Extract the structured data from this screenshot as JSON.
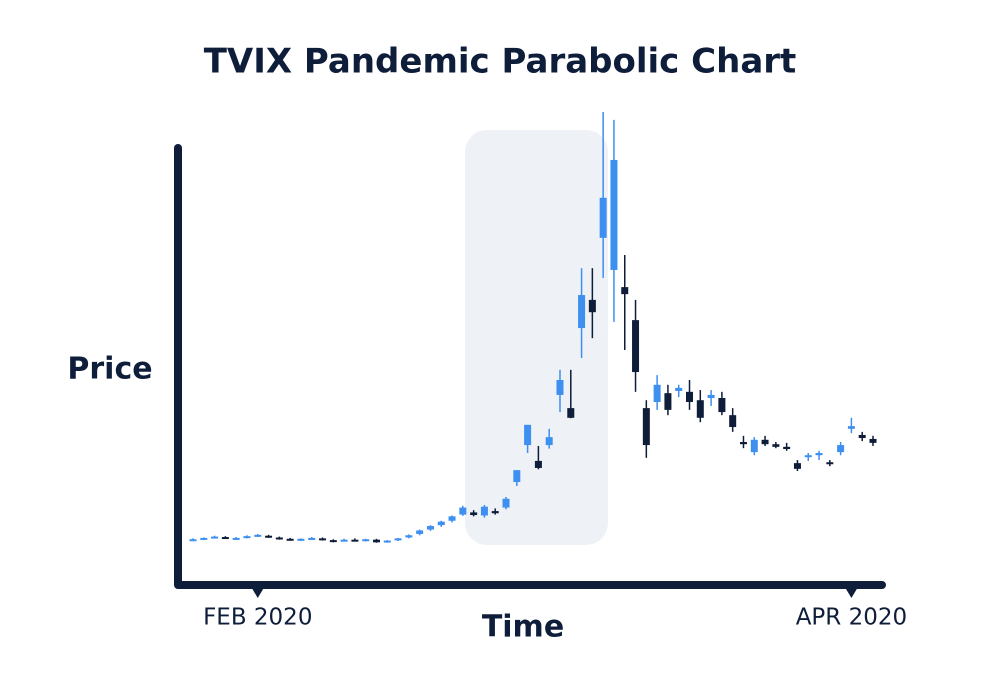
{
  "chart_data": {
    "type": "candlestick",
    "title": "TVIX Pandemic Parabolic Chart",
    "x_label": "Time",
    "y_label": "Price",
    "categories": [
      null,
      null,
      null,
      null,
      null,
      null,
      null,
      null,
      null,
      null,
      null,
      null,
      null,
      null,
      null,
      null,
      null,
      null,
      null,
      null,
      null,
      null,
      null,
      null,
      null,
      null,
      null,
      null,
      null,
      null,
      null,
      null,
      null,
      null,
      null,
      null,
      null,
      null,
      null,
      null,
      null,
      null,
      null,
      null,
      null,
      null,
      null,
      null,
      null,
      null,
      null,
      null,
      null,
      null,
      null,
      null,
      null,
      null,
      null,
      null,
      null,
      null,
      null,
      null
    ],
    "open": [
      10.3,
      10.4,
      10.8,
      10.9,
      10.6,
      10.8,
      11.2,
      11.2,
      10.8,
      10.5,
      10.3,
      10.5,
      10.6,
      10.2,
      10.0,
      10.3,
      10.1,
      10.3,
      9.8,
      10.2,
      10.8,
      11.6,
      12.6,
      13.6,
      14.6,
      16.0,
      16.5,
      15.8,
      16.8,
      17.6,
      23.4,
      31.8,
      28.2,
      31.8,
      43.2,
      40.2,
      58.4,
      64.8,
      78.9,
      71.6,
      67.7,
      60.2,
      40.2,
      41.6,
      43.6,
      44.1,
      43.9,
      42.0,
      42.5,
      42.5,
      38.6,
      32.5,
      30.2,
      33.0,
      32.0,
      31.4,
      27.7,
      29.1,
      29.5,
      27.9,
      30.2,
      35.5,
      34.1,
      33.2
    ],
    "high": [
      10.6,
      10.8,
      11.2,
      11.1,
      10.9,
      11.3,
      11.6,
      11.4,
      11.0,
      10.7,
      10.6,
      10.9,
      10.8,
      10.4,
      10.5,
      10.6,
      10.5,
      10.5,
      10.2,
      10.7,
      11.5,
      12.6,
      13.6,
      14.6,
      15.8,
      18.0,
      17.0,
      18.2,
      17.4,
      20.0,
      26.1,
      36.4,
      31.6,
      35.5,
      48.9,
      48.9,
      72.0,
      72.0,
      107.5,
      105.7,
      75.0,
      64.8,
      42.0,
      47.7,
      45.5,
      45.5,
      46.6,
      44.3,
      44.3,
      43.9,
      40.2,
      33.9,
      33.6,
      33.9,
      32.5,
      32.3,
      28.4,
      30.0,
      30.5,
      28.4,
      32.5,
      38.0,
      34.8,
      33.9
    ],
    "low": [
      10.1,
      10.2,
      10.6,
      10.5,
      10.4,
      10.6,
      10.9,
      10.7,
      10.3,
      10.1,
      10.0,
      10.3,
      10.1,
      9.7,
      9.9,
      9.9,
      9.9,
      9.6,
      9.6,
      10.0,
      10.6,
      11.3,
      12.3,
      13.2,
      14.2,
      15.7,
      15.6,
      15.3,
      16.0,
      17.2,
      22.5,
      30.0,
      26.3,
      31.0,
      39.3,
      37.9,
      51.6,
      56.1,
      69.8,
      59.8,
      53.4,
      43.9,
      28.9,
      39.8,
      38.6,
      42.7,
      39.8,
      37.0,
      40.7,
      38.6,
      34.8,
      31.1,
      29.5,
      31.6,
      31.1,
      30.5,
      25.9,
      28.2,
      28.4,
      27.0,
      29.5,
      34.5,
      32.7,
      31.6
    ],
    "close": [
      10.4,
      10.7,
      11.0,
      10.6,
      10.7,
      11.1,
      11.4,
      10.8,
      10.5,
      10.2,
      10.5,
      10.7,
      10.3,
      9.9,
      10.3,
      10.1,
      10.4,
      9.7,
      10.1,
      10.6,
      11.3,
      12.4,
      13.4,
      14.4,
      15.6,
      17.6,
      15.9,
      17.8,
      16.3,
      19.6,
      26.1,
      36.4,
      26.6,
      33.6,
      46.6,
      38.0,
      65.9,
      62.0,
      88.0,
      96.6,
      66.1,
      48.4,
      31.8,
      45.5,
      39.8,
      44.8,
      41.6,
      38.0,
      43.2,
      39.3,
      35.9,
      32.0,
      33.0,
      32.0,
      31.4,
      30.9,
      26.4,
      29.5,
      30.0,
      27.5,
      31.8,
      36.1,
      33.4,
      32.3
    ],
    "up_color": "#3d8ff0",
    "down_color": "#0e1d3a",
    "ylim": [
      0,
      110
    ],
    "xticks": [
      {
        "value": 6,
        "label": "FEB 2020"
      },
      {
        "value": 61,
        "label": "APR 2020"
      }
    ]
  }
}
